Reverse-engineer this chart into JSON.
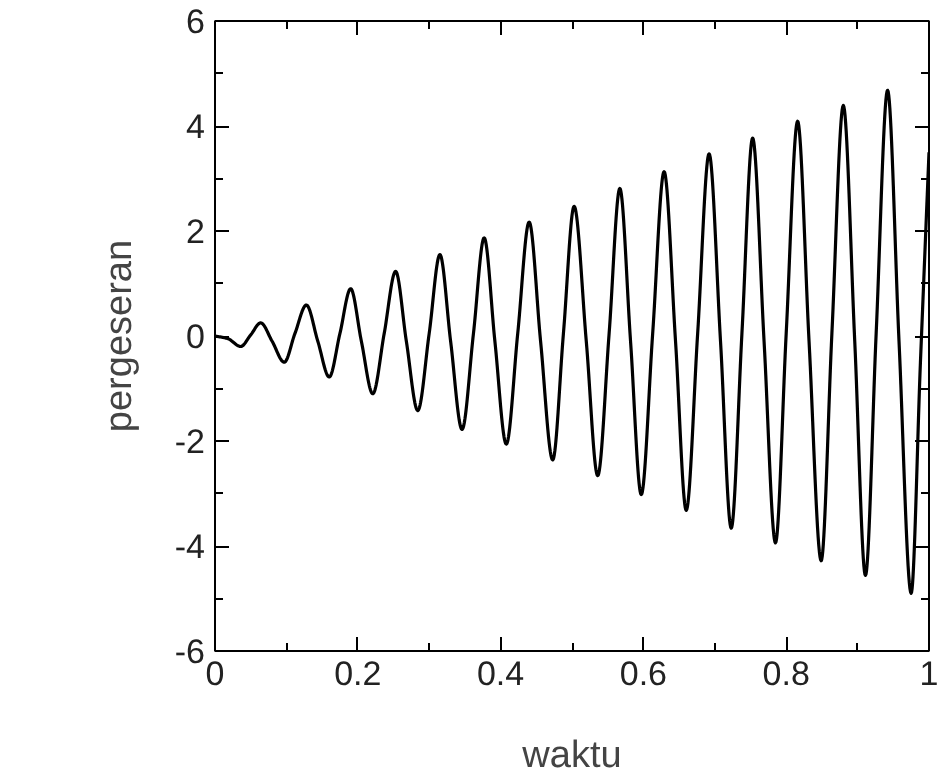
{
  "chart_data": {
    "type": "line",
    "xlabel": "waktu",
    "ylabel": "pergeseran",
    "color": "#000000",
    "grid": false,
    "xlim": [
      0,
      1
    ],
    "ylim": [
      -6,
      6
    ],
    "xticks": [
      0,
      {
        "value": 0.1,
        "label": null
      },
      0.2,
      {
        "value": 0.3,
        "label": null
      },
      0.4,
      {
        "value": 0.5,
        "label": null
      },
      0.6,
      {
        "value": 0.7,
        "label": null
      },
      0.8,
      {
        "value": 0.9,
        "label": null
      },
      1
    ],
    "yticks": [
      -6,
      {
        "value": -5,
        "label": null
      },
      -4,
      {
        "value": -3,
        "label": null
      },
      -2,
      {
        "value": -1,
        "label": null
      },
      0,
      {
        "value": 1,
        "label": null
      },
      2,
      {
        "value": 3,
        "label": null
      },
      4,
      {
        "value": 5,
        "label": null
      },
      6
    ],
    "x": [
      0,
      0.018,
      0.036,
      0.05,
      0.064,
      0.08,
      0.097,
      0.112,
      0.128,
      0.144,
      0.16,
      0.175,
      0.19,
      0.205,
      0.221,
      0.237,
      0.253,
      0.268,
      0.284,
      0.3,
      0.315,
      0.33,
      0.346,
      0.362,
      0.377,
      0.392,
      0.408,
      0.424,
      0.44,
      0.456,
      0.473,
      0.488,
      0.503,
      0.52,
      0.536,
      0.552,
      0.567,
      0.582,
      0.597,
      0.613,
      0.629,
      0.645,
      0.66,
      0.676,
      0.692,
      0.708,
      0.723,
      0.738,
      0.753,
      0.769,
      0.785,
      0.8,
      0.816,
      0.832,
      0.849,
      0.864,
      0.88,
      0.896,
      0.911,
      0.926,
      0.942,
      0.958,
      0.975,
      0.988,
      1.0
    ],
    "values": [
      0,
      -0.05,
      -0.2,
      0.02,
      0.25,
      -0.1,
      -0.5,
      0.05,
      0.59,
      -0.1,
      -0.78,
      0.05,
      0.9,
      -0.1,
      -1.1,
      0.05,
      1.23,
      -0.1,
      -1.42,
      0.05,
      1.55,
      -0.1,
      -1.78,
      0.05,
      1.87,
      -0.1,
      -2.06,
      0.05,
      2.17,
      -0.1,
      -2.36,
      0.05,
      2.47,
      -0.1,
      -2.66,
      0.05,
      2.81,
      -0.1,
      -3.02,
      0.05,
      3.13,
      -0.1,
      -3.32,
      0.05,
      3.47,
      -0.1,
      -3.66,
      0.05,
      3.77,
      -0.1,
      -3.94,
      0.05,
      4.09,
      -0.1,
      -4.28,
      0.05,
      4.39,
      -0.1,
      -4.56,
      0.05,
      4.68,
      -0.1,
      -4.9,
      -0.5,
      3.5
    ]
  }
}
